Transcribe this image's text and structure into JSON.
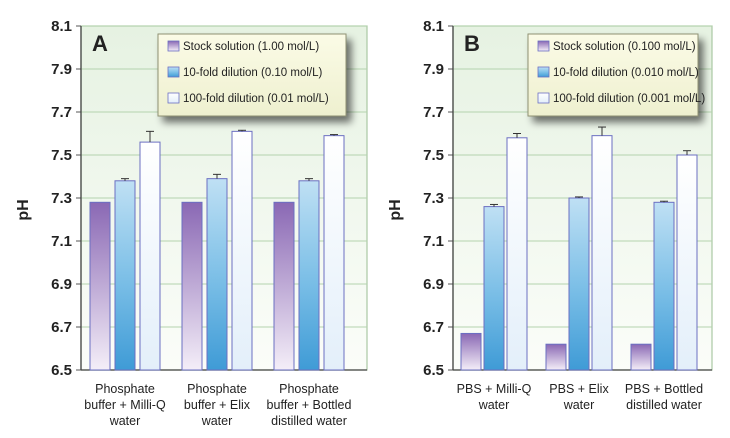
{
  "chart_data": [
    {
      "type": "bar",
      "panel_label": "A",
      "ylabel": "pH",
      "ylim": [
        6.5,
        8.1
      ],
      "yticks": [
        "6.5",
        "6.7",
        "6.9",
        "7.1",
        "7.3",
        "7.5",
        "7.7",
        "7.9",
        "8.1"
      ],
      "grid": true,
      "legend_position": "top-right",
      "categories": [
        [
          "Phosphate",
          "buffer + Milli-Q",
          "water"
        ],
        [
          "Phosphate",
          "buffer + Elix",
          "water"
        ],
        [
          "Phosphate",
          "buffer + Bottled",
          "distilled water"
        ]
      ],
      "series": [
        {
          "name": "Stock solution (1.00 mol/L)",
          "color": "#8a68b4",
          "values": [
            7.28,
            7.28,
            7.28
          ],
          "errors": [
            0.0,
            0.0,
            0.0
          ]
        },
        {
          "name": "10-fold dilution (0.10 mol/L)",
          "color": "#6fb7e4",
          "values": [
            7.38,
            7.39,
            7.38
          ],
          "errors": [
            0.01,
            0.02,
            0.01
          ]
        },
        {
          "name": "100-fold dilution (0.01 mol/L)",
          "color": "#e8f2fb",
          "values": [
            7.56,
            7.61,
            7.59
          ],
          "errors": [
            0.05,
            0.005,
            0.005
          ]
        }
      ]
    },
    {
      "type": "bar",
      "panel_label": "B",
      "ylabel": "pH",
      "ylim": [
        6.5,
        8.1
      ],
      "yticks": [
        "6.5",
        "6.7",
        "6.9",
        "7.1",
        "7.3",
        "7.5",
        "7.7",
        "7.9",
        "8.1"
      ],
      "grid": true,
      "legend_position": "top-right",
      "categories": [
        [
          "PBS + Milli-Q",
          "water"
        ],
        [
          "PBS + Elix",
          "water"
        ],
        [
          "PBS + Bottled",
          "distilled water"
        ]
      ],
      "series": [
        {
          "name": "Stock solution (0.100 mol/L)",
          "color": "#8a68b4",
          "values": [
            6.67,
            6.62,
            6.62
          ],
          "errors": [
            0.0,
            0.0,
            0.0
          ]
        },
        {
          "name": "10-fold dilution (0.010 mol/L)",
          "color": "#6fb7e4",
          "values": [
            7.26,
            7.3,
            7.28
          ],
          "errors": [
            0.01,
            0.005,
            0.005
          ]
        },
        {
          "name": "100-fold dilution (0.001 mol/L)",
          "color": "#e8f2fb",
          "values": [
            7.58,
            7.59,
            7.5
          ],
          "errors": [
            0.02,
            0.04,
            0.02
          ]
        }
      ]
    }
  ]
}
